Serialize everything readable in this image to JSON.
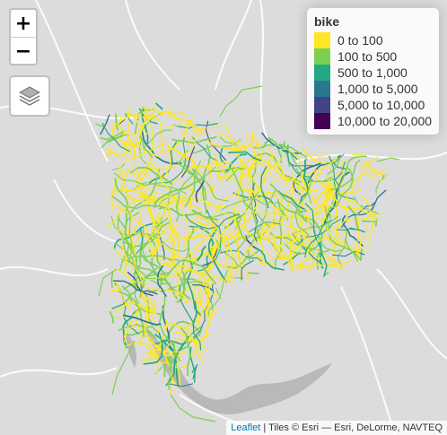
{
  "map": {
    "zoom_in_label": "+",
    "zoom_out_label": "−",
    "layers_icon": "layers-icon"
  },
  "legend": {
    "title": "bike",
    "items": [
      {
        "label": "0 to 100",
        "color": "#fde725"
      },
      {
        "label": "100 to 500",
        "color": "#7ad151"
      },
      {
        "label": "500 to 1,000",
        "color": "#22a884"
      },
      {
        "label": "1,000 to 5,000",
        "color": "#2a788e"
      },
      {
        "label": "5,000 to 10,000",
        "color": "#414487"
      },
      {
        "label": "10,000 to 20,000",
        "color": "#440154"
      }
    ]
  },
  "attribution": {
    "link_text": "Leaflet",
    "text": " | Tiles © Esri — Esri, DeLorme, NAVTEQ"
  },
  "colors": {
    "basemap": "#dcdcdc",
    "roads": "#ffffff",
    "water": "#b5b5b5"
  }
}
